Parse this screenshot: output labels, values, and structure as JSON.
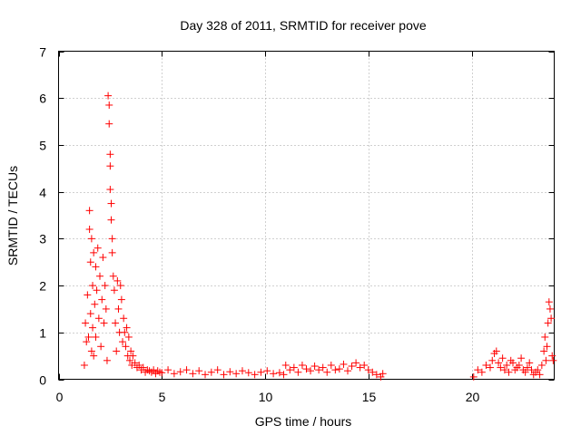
{
  "chart_data": {
    "type": "scatter",
    "title": "Day 328 of 2011, SRMTID for receiver pove",
    "xlabel": "GPS time / hours",
    "ylabel": "SRMTID / TECUs",
    "xlim": [
      0,
      24
    ],
    "ylim": [
      0,
      7
    ],
    "xticks": [
      0,
      5,
      10,
      15,
      20
    ],
    "yticks": [
      0,
      1,
      2,
      3,
      4,
      5,
      6,
      7
    ],
    "grid": true,
    "marker": "+",
    "series_color": "#ff0000",
    "series": [
      {
        "name": "SRMTID",
        "x": [
          1.25,
          1.3,
          1.35,
          1.4,
          1.45,
          1.5,
          1.5,
          1.55,
          1.55,
          1.6,
          1.6,
          1.65,
          1.65,
          1.7,
          1.7,
          1.75,
          1.8,
          1.8,
          1.85,
          1.9,
          1.95,
          2.0,
          2.05,
          2.1,
          2.15,
          2.2,
          2.25,
          2.3,
          2.35,
          2.4,
          2.45,
          2.45,
          2.5,
          2.5,
          2.5,
          2.55,
          2.55,
          2.6,
          2.6,
          2.65,
          2.7,
          2.75,
          2.8,
          2.85,
          2.9,
          2.95,
          3.0,
          3.05,
          3.1,
          3.15,
          3.2,
          3.25,
          3.3,
          3.35,
          3.4,
          3.45,
          3.5,
          3.55,
          3.6,
          3.7,
          3.8,
          3.9,
          4.0,
          4.1,
          4.2,
          4.3,
          4.4,
          4.5,
          4.6,
          4.7,
          4.8,
          4.9,
          5.0,
          5.3,
          5.6,
          5.9,
          6.2,
          6.5,
          6.8,
          7.1,
          7.4,
          7.7,
          8.0,
          8.3,
          8.6,
          8.9,
          9.2,
          9.5,
          9.8,
          10.1,
          10.4,
          10.7,
          10.9,
          11.0,
          11.2,
          11.4,
          11.6,
          11.8,
          12.0,
          12.2,
          12.4,
          12.6,
          12.8,
          13.0,
          13.2,
          13.4,
          13.6,
          13.8,
          14.0,
          14.2,
          14.4,
          14.6,
          14.8,
          15.0,
          15.2,
          15.4,
          15.6,
          15.7,
          20.1,
          20.3,
          20.5,
          20.7,
          20.9,
          21.0,
          21.1,
          21.2,
          21.3,
          21.4,
          21.5,
          21.6,
          21.7,
          21.8,
          21.9,
          22.0,
          22.1,
          22.2,
          22.3,
          22.4,
          22.5,
          22.6,
          22.7,
          22.8,
          22.9,
          23.0,
          23.1,
          23.2,
          23.3,
          23.4,
          23.5,
          23.55,
          23.6,
          23.65,
          23.7,
          23.75,
          23.8,
          23.85,
          23.9,
          23.95
        ],
        "y": [
          0.3,
          1.2,
          0.8,
          1.8,
          0.9,
          3.6,
          3.2,
          2.5,
          1.4,
          3.0,
          0.6,
          2.0,
          1.1,
          2.7,
          0.5,
          1.6,
          2.4,
          0.9,
          1.9,
          2.8,
          1.3,
          2.2,
          0.7,
          1.7,
          2.6,
          1.2,
          2.0,
          1.5,
          0.4,
          6.05,
          5.85,
          5.45,
          4.8,
          4.55,
          4.05,
          3.75,
          3.4,
          3.0,
          2.7,
          2.2,
          1.9,
          1.2,
          0.6,
          2.1,
          1.5,
          1.0,
          2.0,
          1.7,
          0.8,
          1.3,
          1.0,
          0.7,
          1.1,
          0.5,
          0.9,
          0.4,
          0.6,
          0.3,
          0.5,
          0.35,
          0.25,
          0.3,
          0.2,
          0.25,
          0.15,
          0.2,
          0.18,
          0.15,
          0.2,
          0.12,
          0.18,
          0.15,
          0.14,
          0.2,
          0.12,
          0.16,
          0.2,
          0.12,
          0.18,
          0.1,
          0.15,
          0.2,
          0.1,
          0.16,
          0.12,
          0.18,
          0.14,
          0.1,
          0.15,
          0.18,
          0.12,
          0.14,
          0.1,
          0.3,
          0.2,
          0.25,
          0.15,
          0.3,
          0.22,
          0.18,
          0.28,
          0.2,
          0.25,
          0.15,
          0.3,
          0.2,
          0.22,
          0.32,
          0.18,
          0.28,
          0.35,
          0.25,
          0.3,
          0.2,
          0.15,
          0.1,
          0.05,
          0.12,
          0.05,
          0.2,
          0.15,
          0.3,
          0.25,
          0.4,
          0.55,
          0.6,
          0.35,
          0.25,
          0.45,
          0.2,
          0.3,
          0.15,
          0.4,
          0.35,
          0.2,
          0.25,
          0.3,
          0.45,
          0.2,
          0.15,
          0.25,
          0.35,
          0.2,
          0.1,
          0.15,
          0.2,
          0.1,
          0.3,
          0.6,
          0.9,
          0.4,
          0.7,
          1.2,
          1.65,
          1.5,
          1.3,
          0.5,
          0.4
        ]
      }
    ]
  }
}
